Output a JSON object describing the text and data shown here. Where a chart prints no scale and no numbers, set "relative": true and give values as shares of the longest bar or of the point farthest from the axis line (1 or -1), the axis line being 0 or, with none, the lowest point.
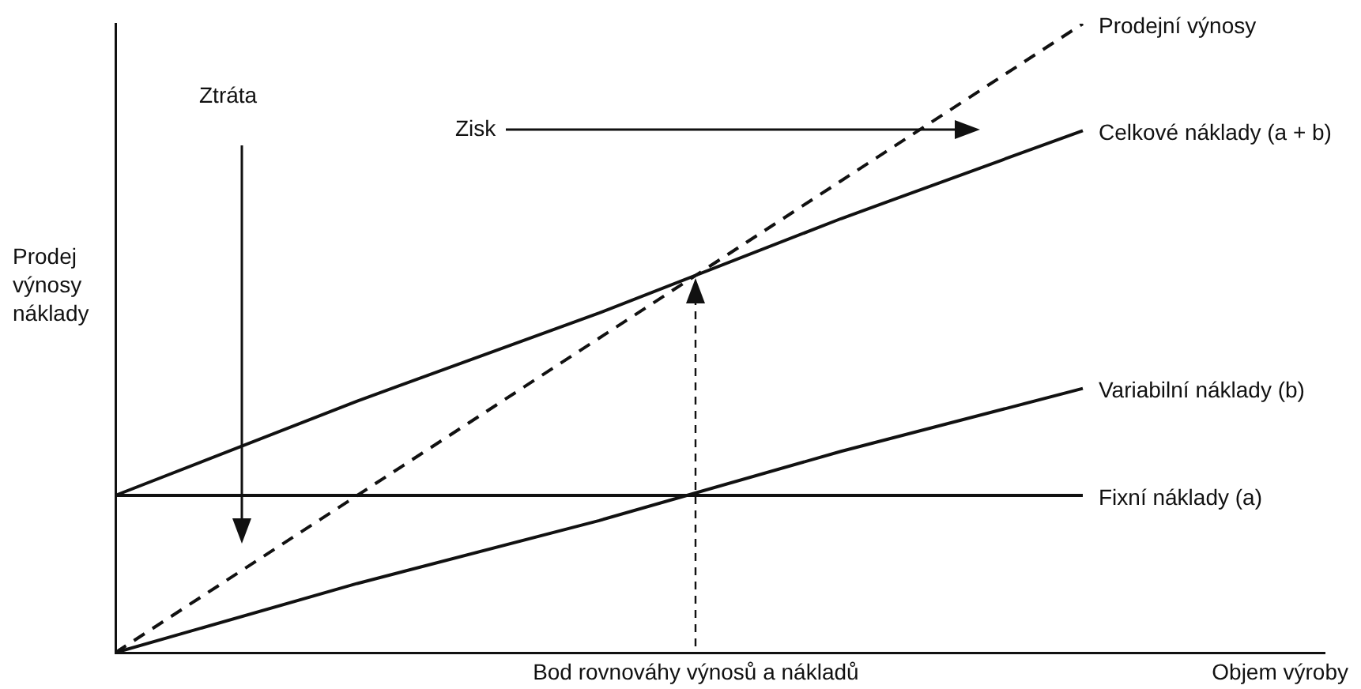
{
  "chart_data": {
    "type": "line",
    "relative": true,
    "xlabel": "Objem výroby",
    "ylabel": "Prodej výnosy náklady",
    "annotations": [
      "Ztráta",
      "Zisk",
      "Bod rovnováhy výnosů a nákladů"
    ],
    "categories": [
      null,
      null,
      null,
      null,
      null,
      null
    ],
    "series": [
      {
        "name": "Prodejní výnosy",
        "color": "#111111",
        "line_style": "dashed",
        "values": [
          0,
          0.25,
          0.5,
          0.75,
          1,
          null
        ]
      },
      {
        "name": "Celkové náklady (a + b)",
        "color": "#111111",
        "line_style": "solid",
        "values": [
          0.25,
          0.4,
          0.54,
          0.69,
          0.83,
          null
        ]
      },
      {
        "name": "Variabilní náklady (b)",
        "color": "#111111",
        "line_style": "solid",
        "values": [
          0,
          0.11,
          0.21,
          0.32,
          0.42,
          null
        ]
      },
      {
        "name": "Fixní náklady (a)",
        "color": "#111111",
        "line_style": "solid",
        "values": [
          0.25,
          0.25,
          0.25,
          0.25,
          0.25,
          null
        ]
      }
    ],
    "legend": false,
    "grid": false,
    "marker": "none"
  }
}
